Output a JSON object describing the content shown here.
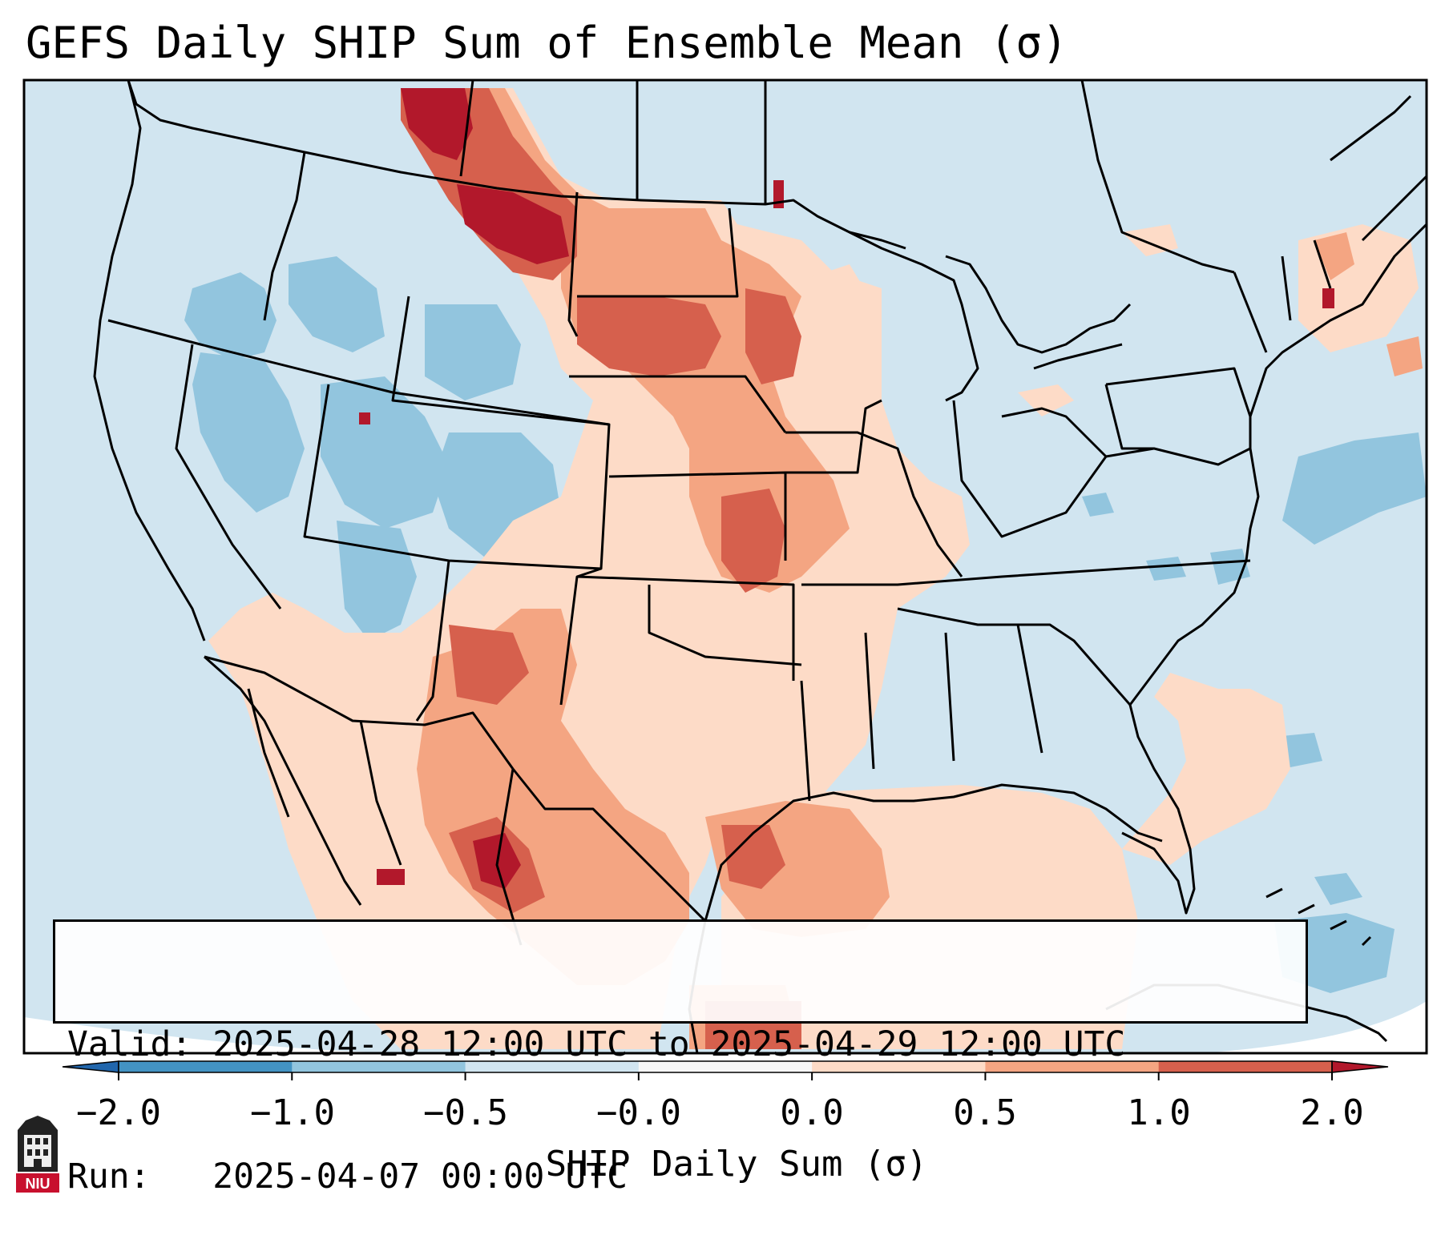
{
  "title": "GEFS Daily SHIP Sum of Ensemble Mean (σ)",
  "info_box": {
    "valid_line": "Valid: 2025-04-28 12:00 UTC to 2025-04-29 12:00 UTC",
    "run_line": "Run:   2025-04-07 00:00 UTC"
  },
  "colorbar": {
    "label": "SHIP Daily Sum (σ)",
    "ticks": [
      "−2.0",
      "−1.0",
      "−0.5",
      "−0.0",
      "0.0",
      "0.5",
      "1.0",
      "2.0"
    ],
    "bins": [
      {
        "from": -2.0,
        "to": -1.0,
        "color": "#4393c3"
      },
      {
        "from": -1.0,
        "to": -0.5,
        "color": "#92c5de"
      },
      {
        "from": -0.5,
        "to": -0.0,
        "color": "#d1e5f0"
      },
      {
        "from": -0.0,
        "to": 0.0,
        "color": "#f7f7f7"
      },
      {
        "from": 0.0,
        "to": 0.5,
        "color": "#fddbc7"
      },
      {
        "from": 0.5,
        "to": 1.0,
        "color": "#f4a582"
      },
      {
        "from": 1.0,
        "to": 2.0,
        "color": "#d6604d"
      }
    ],
    "under_color": "#2166ac",
    "over_color": "#b2182b",
    "extend": "both"
  },
  "map": {
    "region": "Contiguous United States, northern Mexico, Gulf of Mexico, Caribbean",
    "background_color": "#d1e5f0",
    "boundaries": "state and country borders, coastlines"
  },
  "logo": {
    "text": "NIU",
    "color": "#c8102e"
  }
}
